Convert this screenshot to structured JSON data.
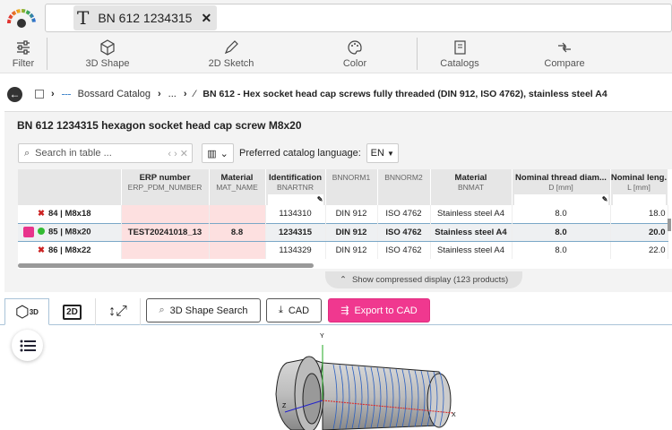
{
  "search": {
    "chip_text": "BN 612 1234315",
    "chip_icon": "text-T-icon",
    "close_icon": "close-icon"
  },
  "toolbar": [
    {
      "label": "Filter",
      "icon": "sliders-icon"
    },
    {
      "label": "3D Shape",
      "icon": "cube-icon"
    },
    {
      "label": "2D Sketch",
      "icon": "pencil-icon"
    },
    {
      "label": "Color",
      "icon": "palette-icon"
    },
    {
      "label": "Catalogs",
      "icon": "catalog-icon"
    },
    {
      "label": "Compare",
      "icon": "compare-icon"
    }
  ],
  "breadcrumb": [
    "Bossard Catalog",
    "...",
    "BN 612 - Hex socket head cap screws fully threaded (DIN 912, ISO 4762), stainless steel A4"
  ],
  "panel": {
    "title": "BN 612 1234315 hexagon socket head cap screw M8x20",
    "search_placeholder": "Search in table ...",
    "lang_label": "Preferred catalog language:",
    "lang_value": "EN"
  },
  "table": {
    "columns": [
      {
        "title": "",
        "sub": ""
      },
      {
        "title": "ERP number",
        "sub": "ERP_PDM_NUMBER"
      },
      {
        "title": "Material",
        "sub": "MAT_NAME"
      },
      {
        "title": "Identification",
        "sub": "BNARTNR"
      },
      {
        "title": "",
        "sub": "BNNORM1"
      },
      {
        "title": "",
        "sub": "BNNORM2"
      },
      {
        "title": "Material",
        "sub": "BNMAT"
      },
      {
        "title": "Nominal thread diam...",
        "sub": "D [mm]"
      },
      {
        "title": "Nominal leng.",
        "sub": "L [mm]"
      }
    ],
    "rows": [
      {
        "status": "not-available",
        "cells": [
          "84 | M8x18",
          "",
          "",
          "1134310",
          "DIN 912",
          "ISO 4762",
          "Stainless steel A4",
          "8.0",
          "18.0"
        ]
      },
      {
        "status": "available",
        "selected": true,
        "cells": [
          "85 | M8x20",
          "TEST20241018_13",
          "8.8",
          "1234315",
          "DIN 912",
          "ISO 4762",
          "Stainless steel A4",
          "8.0",
          "20.0"
        ]
      },
      {
        "status": "not-available",
        "cells": [
          "86 | M8x22",
          "",
          "",
          "1134329",
          "DIN 912",
          "ISO 4762",
          "Stainless steel A4",
          "8.0",
          "22.0"
        ]
      }
    ],
    "compress_label": "Show compressed display (123 products)"
  },
  "viewer": {
    "tab_2d": "2D",
    "tab_3d_sub": "3D",
    "shape_search": "3D Shape Search",
    "cad": "CAD",
    "export": "Export to CAD",
    "accent": "#f0388f",
    "axes": {
      "x": "X",
      "y": "Y",
      "z": "Z"
    }
  }
}
